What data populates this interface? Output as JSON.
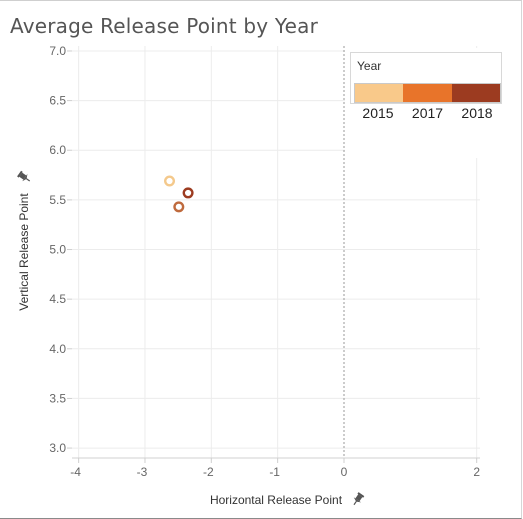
{
  "title": "Average Release Point by Year",
  "chart_data": {
    "type": "scatter",
    "title": "Average Release Point by Year",
    "xlabel": "Horizontal Release Point",
    "ylabel": "Vertical Release Point",
    "xlim": [
      -4.1,
      2.05
    ],
    "ylim": [
      2.9,
      7.05
    ],
    "x_ticks": [
      -4,
      -3,
      -2,
      -1,
      0,
      2
    ],
    "x_tick_labels": [
      "-4",
      "-3",
      "-2",
      "-1",
      "0",
      "2"
    ],
    "y_ticks": [
      3.0,
      3.5,
      4.0,
      4.5,
      5.0,
      5.5,
      6.0,
      6.5,
      7.0
    ],
    "y_tick_labels": [
      "3.0",
      "3.5",
      "4.0",
      "4.5",
      "5.0",
      "5.5",
      "6.0",
      "6.5",
      "7.0"
    ],
    "reference_line_x": 0,
    "grid": true,
    "legend": {
      "title": "Year",
      "placement": "top-right",
      "entries": [
        {
          "label": "2015",
          "color": "#f9c98a"
        },
        {
          "label": "2017",
          "color": "#e8742a"
        },
        {
          "label": "2018",
          "color": "#9c3b20"
        }
      ]
    },
    "points": [
      {
        "year": "2015",
        "x": -2.63,
        "y": 5.69,
        "color": "#f4c98c"
      },
      {
        "year": "2017",
        "x": -2.49,
        "y": 5.43,
        "color": "#bf6a3d"
      },
      {
        "year": "2018",
        "x": -2.35,
        "y": 5.57,
        "color": "#9c3b20"
      }
    ]
  }
}
